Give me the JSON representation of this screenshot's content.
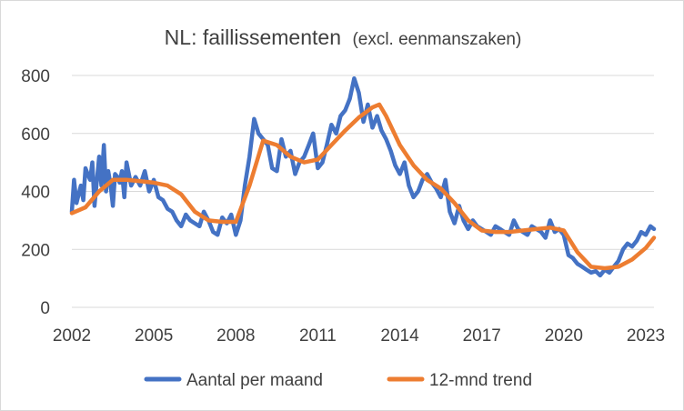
{
  "chart_data": {
    "type": "line",
    "title": "NL: faillissementen",
    "subtitle": "(excl. eenmanszaken)",
    "xlabel": "",
    "ylabel": "",
    "xlim": [
      2002,
      2023.3
    ],
    "ylim": [
      0,
      800
    ],
    "x_ticks": [
      "2002",
      "2005",
      "2008",
      "2011",
      "2014",
      "2017",
      "2020",
      "2023"
    ],
    "y_ticks": [
      "0",
      "200",
      "400",
      "600",
      "800"
    ],
    "grid": "horizontal",
    "legend_position": "bottom",
    "series": [
      {
        "name": "Aantal per maand",
        "color": "#4472C4",
        "x": [
          2002.0,
          2002.08,
          2002.17,
          2002.25,
          2002.33,
          2002.42,
          2002.5,
          2002.58,
          2002.67,
          2002.75,
          2002.83,
          2002.92,
          2003.0,
          2003.08,
          2003.17,
          2003.25,
          2003.33,
          2003.42,
          2003.5,
          2003.58,
          2003.67,
          2003.75,
          2003.83,
          2003.92,
          2004.0,
          2004.17,
          2004.33,
          2004.5,
          2004.67,
          2004.83,
          2005.0,
          2005.17,
          2005.33,
          2005.5,
          2005.67,
          2005.83,
          2006.0,
          2006.17,
          2006.33,
          2006.5,
          2006.67,
          2006.83,
          2007.0,
          2007.17,
          2007.33,
          2007.5,
          2007.67,
          2007.83,
          2008.0,
          2008.17,
          2008.33,
          2008.5,
          2008.67,
          2008.83,
          2009.0,
          2009.17,
          2009.33,
          2009.5,
          2009.67,
          2009.83,
          2010.0,
          2010.17,
          2010.33,
          2010.5,
          2010.67,
          2010.83,
          2011.0,
          2011.17,
          2011.33,
          2011.5,
          2011.67,
          2011.83,
          2012.0,
          2012.17,
          2012.33,
          2012.5,
          2012.67,
          2012.83,
          2013.0,
          2013.17,
          2013.33,
          2013.5,
          2013.67,
          2013.83,
          2014.0,
          2014.17,
          2014.33,
          2014.5,
          2014.67,
          2014.83,
          2015.0,
          2015.17,
          2015.33,
          2015.5,
          2015.67,
          2015.83,
          2016.0,
          2016.17,
          2016.33,
          2016.5,
          2016.67,
          2016.83,
          2017.0,
          2017.17,
          2017.33,
          2017.5,
          2017.67,
          2017.83,
          2018.0,
          2018.17,
          2018.33,
          2018.5,
          2018.67,
          2018.83,
          2019.0,
          2019.17,
          2019.33,
          2019.5,
          2019.67,
          2019.83,
          2020.0,
          2020.17,
          2020.33,
          2020.5,
          2020.67,
          2020.83,
          2021.0,
          2021.17,
          2021.33,
          2021.5,
          2021.67,
          2021.83,
          2022.0,
          2022.17,
          2022.33,
          2022.5,
          2022.67,
          2022.83,
          2023.0,
          2023.17,
          2023.3
        ],
        "values": [
          330,
          440,
          360,
          390,
          420,
          370,
          480,
          460,
          440,
          500,
          350,
          440,
          520,
          420,
          560,
          400,
          470,
          420,
          350,
          460,
          450,
          430,
          470,
          380,
          500,
          420,
          450,
          420,
          470,
          400,
          440,
          380,
          370,
          340,
          330,
          300,
          280,
          320,
          300,
          290,
          280,
          330,
          300,
          260,
          250,
          310,
          290,
          320,
          250,
          300,
          420,
          520,
          650,
          600,
          580,
          560,
          480,
          470,
          580,
          520,
          540,
          460,
          500,
          520,
          560,
          600,
          480,
          500,
          560,
          630,
          600,
          660,
          680,
          720,
          790,
          740,
          640,
          700,
          620,
          660,
          610,
          580,
          540,
          490,
          460,
          500,
          420,
          380,
          400,
          440,
          460,
          430,
          410,
          380,
          440,
          330,
          290,
          350,
          300,
          270,
          300,
          280,
          270,
          260,
          250,
          280,
          270,
          260,
          250,
          300,
          270,
          260,
          250,
          280,
          270,
          260,
          240,
          300,
          260,
          270,
          250,
          180,
          170,
          150,
          140,
          130,
          120,
          125,
          110,
          130,
          120,
          140,
          160,
          200,
          220,
          210,
          230,
          260,
          250,
          280,
          270
        ]
      },
      {
        "name": "12-mnd trend",
        "color": "#ED7D31",
        "x": [
          2002.0,
          2002.5,
          2003.0,
          2003.5,
          2004.0,
          2004.5,
          2005.0,
          2005.5,
          2006.0,
          2006.5,
          2007.0,
          2007.5,
          2008.0,
          2008.5,
          2009.0,
          2009.5,
          2010.0,
          2010.5,
          2011.0,
          2011.5,
          2012.0,
          2012.5,
          2013.0,
          2013.25,
          2013.5,
          2014.0,
          2014.5,
          2015.0,
          2015.5,
          2016.0,
          2016.5,
          2017.0,
          2017.5,
          2018.0,
          2018.5,
          2019.0,
          2019.5,
          2020.0,
          2020.5,
          2021.0,
          2021.5,
          2022.0,
          2022.5,
          2023.0,
          2023.3
        ],
        "values": [
          325,
          345,
          400,
          440,
          440,
          435,
          430,
          420,
          390,
          330,
          300,
          295,
          295,
          420,
          575,
          560,
          520,
          500,
          510,
          560,
          610,
          655,
          690,
          700,
          660,
          560,
          490,
          440,
          410,
          360,
          300,
          265,
          260,
          260,
          265,
          270,
          275,
          265,
          190,
          140,
          135,
          140,
          165,
          205,
          240
        ]
      }
    ]
  }
}
